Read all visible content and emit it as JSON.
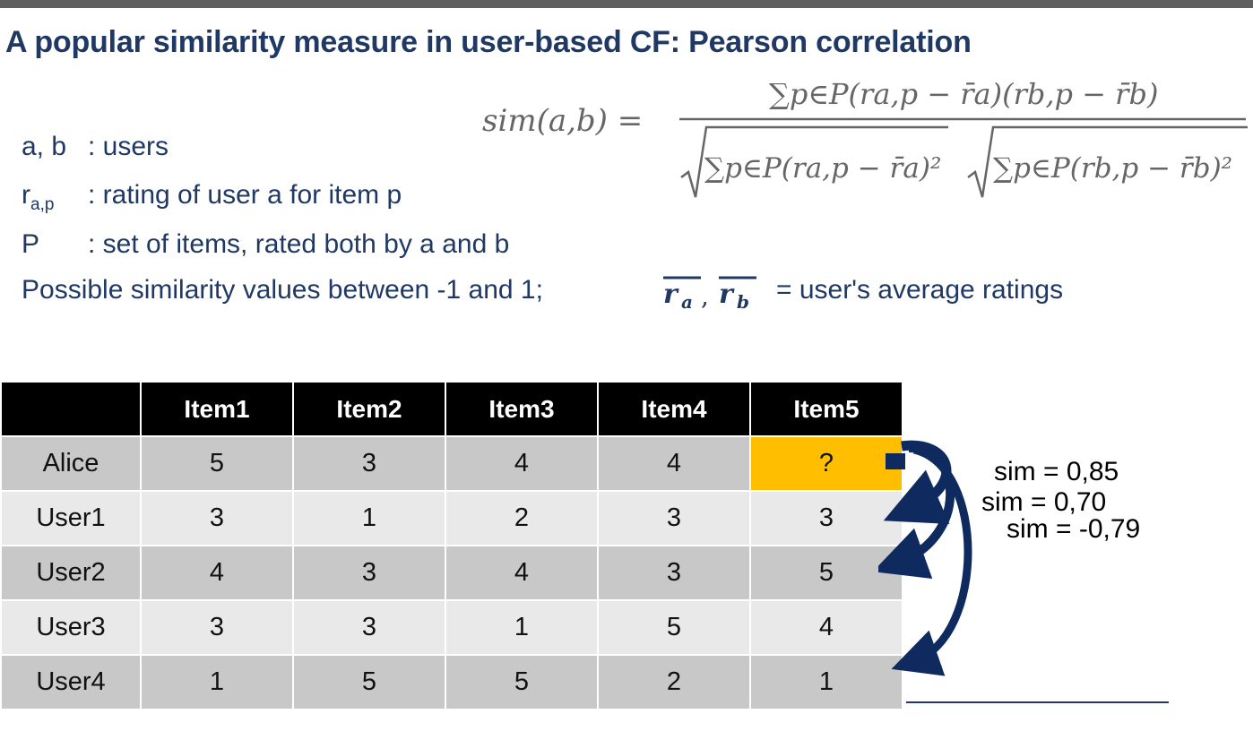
{
  "title": "A popular similarity measure in user-based CF: Pearson correlation",
  "formula": {
    "lhs": "sim(a,b) =",
    "numerator": "∑p∈P(ra,p − r̄a)(rb,p − r̄b)",
    "denominator_left": "∑p∈P(ra,p − r̄a)²",
    "denominator_right": "∑p∈P(rb,p − r̄b)²"
  },
  "definitions": [
    {
      "symbol": "a, b",
      "description": ": users"
    },
    {
      "symbol_base": "r",
      "symbol_sub": "a,p",
      "description": ": rating of user a for item p"
    },
    {
      "symbol": "P",
      "description": ": set of items, rated both by a and b"
    }
  ],
  "possible_values": "Possible similarity values between -1 and 1;",
  "means": {
    "a_base": "r",
    "a_sub": "a",
    "b_base": "r",
    "b_sub": "b",
    "label": "= user's average ratings"
  },
  "table": {
    "headers": [
      "",
      "Item1",
      "Item2",
      "Item3",
      "Item4",
      "Item5"
    ],
    "rows": [
      {
        "name": "Alice",
        "values": [
          "5",
          "3",
          "4",
          "4",
          "?"
        ]
      },
      {
        "name": "User1",
        "values": [
          "3",
          "1",
          "2",
          "3",
          "3"
        ]
      },
      {
        "name": "User2",
        "values": [
          "4",
          "3",
          "4",
          "3",
          "5"
        ]
      },
      {
        "name": "User3",
        "values": [
          "3",
          "3",
          "1",
          "5",
          "4"
        ]
      },
      {
        "name": "User4",
        "values": [
          "1",
          "5",
          "5",
          "2",
          "1"
        ]
      }
    ]
  },
  "similarities": [
    "sim = 0,85",
    "sim = 0,70",
    "sim = -0,79"
  ],
  "colors": {
    "title": "#1f3864",
    "header_bg": "#000000",
    "unknown_cell": "#ffbf00",
    "arrow": "#0e2a5e"
  }
}
